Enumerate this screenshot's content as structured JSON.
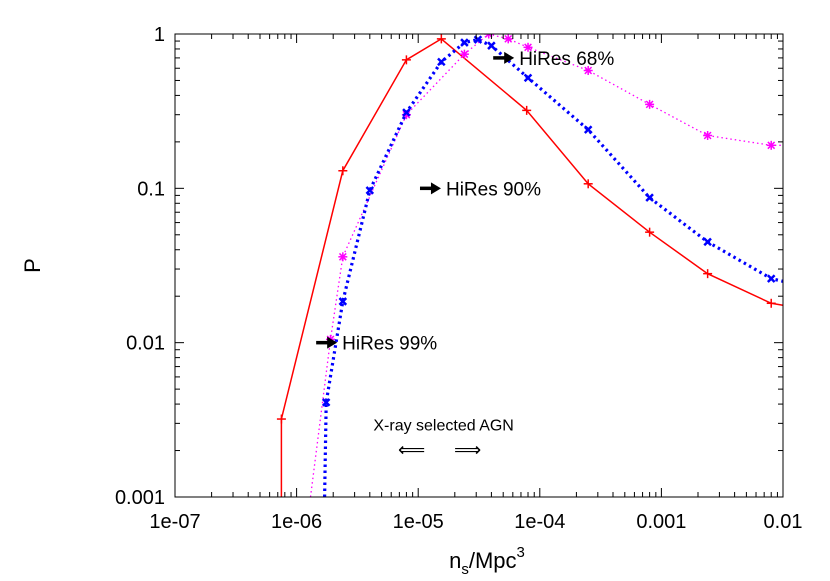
{
  "chart_data": {
    "type": "line",
    "title": "",
    "xlabel": "n_s/Mpc^3",
    "xlabel_parts": {
      "base": "n",
      "sub": "s",
      "rest": "/Mpc",
      "sup": "3"
    },
    "ylabel": "P",
    "xscale": "log",
    "yscale": "log",
    "xlim": [
      1e-07,
      0.01
    ],
    "ylim": [
      0.001,
      1
    ],
    "grid": false,
    "legend": "none",
    "x_ticks": [
      {
        "value": 1e-07,
        "label": "1e-07"
      },
      {
        "value": 1e-06,
        "label": "1e-06"
      },
      {
        "value": 1e-05,
        "label": "1e-05"
      },
      {
        "value": 0.0001,
        "label": "1e-04"
      },
      {
        "value": 0.001,
        "label": "0.001"
      },
      {
        "value": 0.01,
        "label": "0.01"
      }
    ],
    "y_ticks": [
      {
        "value": 0.001,
        "label": "0.001"
      },
      {
        "value": 0.01,
        "label": "0.01"
      },
      {
        "value": 0.1,
        "label": "0.1"
      },
      {
        "value": 1,
        "label": "1"
      }
    ],
    "series": [
      {
        "color": "#ff0000",
        "style": "solid",
        "marker": "plus",
        "x": [
          7.5e-07,
          2.4e-06,
          8e-06,
          1.55e-05,
          7.8e-05,
          0.00025,
          0.0008,
          0.0024,
          0.008
        ],
        "y": [
          0.0032,
          0.13,
          0.68,
          0.93,
          0.32,
          0.107,
          0.052,
          0.028,
          0.018
        ],
        "lead": {
          "x": 7.5e-07,
          "y": 0.001
        },
        "tail": {
          "x": 0.01,
          "y": 0.0175
        }
      },
      {
        "color": "#ff00ff",
        "style": "dotted",
        "marker": "star",
        "x": [
          1.9e-06,
          2.4e-06,
          8e-06,
          2.4e-05,
          3.8e-05,
          5.5e-05,
          8e-05,
          0.00025,
          0.0008,
          0.0024,
          0.008
        ],
        "y": [
          0.0105,
          0.036,
          0.3,
          0.74,
          1.0,
          0.93,
          0.82,
          0.58,
          0.35,
          0.22,
          0.19
        ],
        "lead": {
          "x": 1.3e-06,
          "y": 0.001
        },
        "tail": {
          "x": 0.01,
          "y": 0.19
        }
      },
      {
        "color": "#0000ff",
        "style": "dotted-thick",
        "marker": "cross",
        "x": [
          1.75e-06,
          2.4e-06,
          4e-06,
          8e-06,
          1.55e-05,
          2.4e-05,
          3.1e-05,
          4e-05,
          8e-05,
          0.00025,
          0.0008,
          0.0024,
          0.008
        ],
        "y": [
          0.0041,
          0.0185,
          0.097,
          0.31,
          0.66,
          0.88,
          0.92,
          0.84,
          0.52,
          0.24,
          0.087,
          0.045,
          0.026
        ],
        "lead": {
          "x": 1.7e-06,
          "y": 0.001
        },
        "tail": {
          "x": 0.01,
          "y": 0.025
        }
      }
    ],
    "annotations": [
      {
        "text": "HiRes 68%",
        "arrow": "right",
        "x": 5e-05,
        "y": 0.7
      },
      {
        "text": "HiRes 90%",
        "arrow": "right",
        "x": 1.25e-05,
        "y": 0.1
      },
      {
        "text": "HiRes 99%",
        "arrow": "right",
        "x": 1.75e-06,
        "y": 0.01
      }
    ],
    "note": {
      "text": "X-ray selected AGN",
      "arrow_left": "⟸",
      "arrow_right": "⟹"
    }
  }
}
